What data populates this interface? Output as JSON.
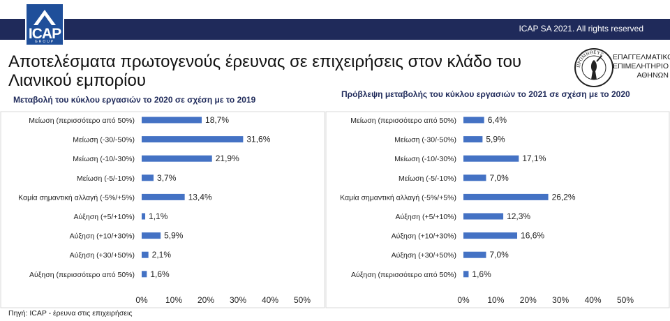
{
  "header": {
    "logo_name": "ICAP",
    "logo_sub": "GROUP",
    "copyright": "ICAP SA 2021.  All rights reserved"
  },
  "title": "Αποτελέσματα πρωτογενούς έρευνας σε επιχειρήσεις στον κλάδο του Λιανικού εμπορίου",
  "chamber": {
    "line1": "ΕΠΑΓΓΕΛΜΑΤΙΚΟ",
    "line2": "ΕΠΙΜΕΛΗΤΗΡΙΟ",
    "line3": "ΑΘΗΝΩΝ",
    "seal_text": "ΠΡΟΜΗΘΕΥΣ"
  },
  "source": "Πηγή: ICAP - έρευνα στις επιχειρήσεις",
  "colors": {
    "bar": "#4472c4",
    "topbar": "#1f2a5a",
    "logo": "#1f4f9a"
  },
  "chart_data": [
    {
      "type": "bar",
      "orientation": "horizontal",
      "title": "Μεταβολή του κύκλου εργασιών το 2020 σε σχέση με το 2019",
      "categories": [
        "Μείωση (περισσότερο από 50%)",
        "Μείωση (-30/-50%)",
        "Μείωση (-10/-30%)",
        "Μείωση (-5/-10%)",
        "Καμία σημαντική αλλαγή (-5%/+5%)",
        "Αύξηση (+5/+10%)",
        "Αύξηση (+10/+30%)",
        "Αύξηση (+30/+50%)",
        "Αύξηση (περισσότερο από 50%)"
      ],
      "values": [
        18.7,
        31.6,
        21.9,
        3.7,
        13.4,
        1.1,
        5.9,
        2.1,
        1.6
      ],
      "labels": [
        "18,7%",
        "31,6%",
        "21,9%",
        "3,7%",
        "13,4%",
        "1,1%",
        "5,9%",
        "2,1%",
        "1,6%"
      ],
      "xlim": [
        0,
        50
      ],
      "xticks": [
        "0%",
        "10%",
        "20%",
        "30%",
        "40%",
        "50%"
      ]
    },
    {
      "type": "bar",
      "orientation": "horizontal",
      "title": "Πρόβλεψη μεταβολής του κύκλου εργασιών το 2021 σε σχέση με το 2020",
      "categories": [
        "Μείωση (περισσότερο από 50%)",
        "Μείωση (-30/-50%)",
        "Μείωση (-10/-30%)",
        "Μείωση (-5/-10%)",
        "Καμία σημαντική αλλαγή (-5%/+5%)",
        "Αύξηση (+5/+10%)",
        "Αύξηση (+10/+30%)",
        "Αύξηση (+30/+50%)",
        "Αύξηση (περισσότερο από 50%)"
      ],
      "values": [
        6.4,
        5.9,
        17.1,
        7.0,
        26.2,
        12.3,
        16.6,
        7.0,
        1.6
      ],
      "labels": [
        "6,4%",
        "5,9%",
        "17,1%",
        "7,0%",
        "26,2%",
        "12,3%",
        "16,6%",
        "7,0%",
        "1,6%"
      ],
      "xlim": [
        0,
        50
      ],
      "xticks": [
        "0%",
        "10%",
        "20%",
        "30%",
        "40%",
        "50%"
      ]
    }
  ]
}
